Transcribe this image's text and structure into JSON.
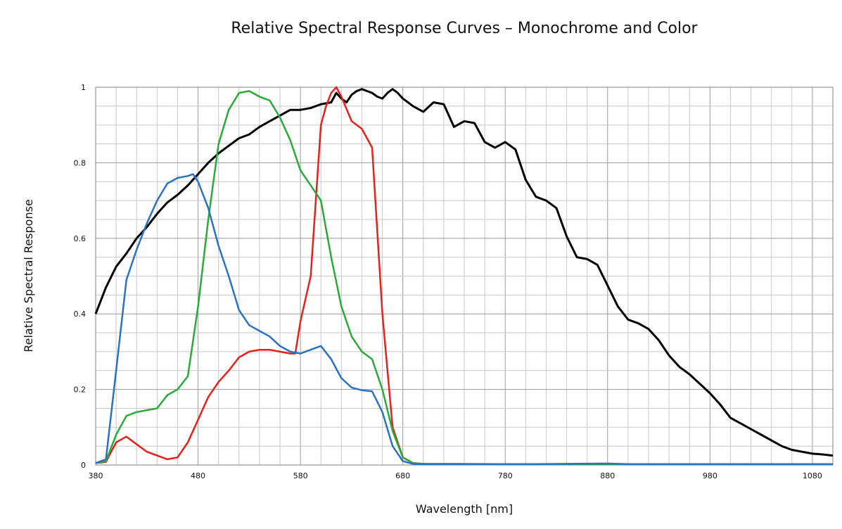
{
  "chart_data": {
    "type": "line",
    "title": "Relative Spectral Response Curves – Monochrome and Color",
    "xlabel": "Wavelength [nm]",
    "ylabel": "Relative Spectral Response",
    "xlim": [
      380,
      1100
    ],
    "ylim": [
      0,
      1
    ],
    "x_ticks": [
      "380",
      "480",
      "580",
      "680",
      "780",
      "880",
      "980",
      "1080"
    ],
    "x_tick_values": [
      380,
      480,
      580,
      680,
      780,
      880,
      980,
      1080
    ],
    "y_ticks": [
      "0",
      "0.2",
      "0.4",
      "0.6",
      "0.8",
      "1"
    ],
    "y_tick_values": [
      0,
      0.2,
      0.4,
      0.6,
      0.8,
      1
    ],
    "grid": true,
    "legend": "none",
    "series": [
      {
        "color": "#000000",
        "points": [
          [
            380,
            0.4
          ],
          [
            390,
            0.47
          ],
          [
            400,
            0.525
          ],
          [
            410,
            0.56
          ],
          [
            420,
            0.6
          ],
          [
            430,
            0.63
          ],
          [
            440,
            0.665
          ],
          [
            450,
            0.695
          ],
          [
            460,
            0.715
          ],
          [
            470,
            0.74
          ],
          [
            480,
            0.77
          ],
          [
            490,
            0.8
          ],
          [
            500,
            0.825
          ],
          [
            510,
            0.845
          ],
          [
            520,
            0.865
          ],
          [
            530,
            0.875
          ],
          [
            540,
            0.895
          ],
          [
            550,
            0.91
          ],
          [
            560,
            0.925
          ],
          [
            570,
            0.94
          ],
          [
            580,
            0.94
          ],
          [
            590,
            0.945
          ],
          [
            600,
            0.955
          ],
          [
            610,
            0.96
          ],
          [
            615,
            0.985
          ],
          [
            620,
            0.97
          ],
          [
            625,
            0.96
          ],
          [
            630,
            0.98
          ],
          [
            635,
            0.99
          ],
          [
            640,
            0.995
          ],
          [
            645,
            0.99
          ],
          [
            650,
            0.985
          ],
          [
            655,
            0.975
          ],
          [
            660,
            0.97
          ],
          [
            665,
            0.985
          ],
          [
            670,
            0.995
          ],
          [
            675,
            0.985
          ],
          [
            680,
            0.97
          ],
          [
            690,
            0.95
          ],
          [
            700,
            0.935
          ],
          [
            710,
            0.96
          ],
          [
            720,
            0.955
          ],
          [
            730,
            0.895
          ],
          [
            740,
            0.91
          ],
          [
            750,
            0.905
          ],
          [
            760,
            0.855
          ],
          [
            770,
            0.84
          ],
          [
            780,
            0.855
          ],
          [
            790,
            0.835
          ],
          [
            800,
            0.755
          ],
          [
            810,
            0.71
          ],
          [
            820,
            0.7
          ],
          [
            830,
            0.68
          ],
          [
            840,
            0.605
          ],
          [
            850,
            0.55
          ],
          [
            860,
            0.545
          ],
          [
            870,
            0.53
          ],
          [
            880,
            0.475
          ],
          [
            890,
            0.42
          ],
          [
            900,
            0.385
          ],
          [
            910,
            0.375
          ],
          [
            920,
            0.36
          ],
          [
            930,
            0.33
          ],
          [
            940,
            0.29
          ],
          [
            950,
            0.26
          ],
          [
            960,
            0.24
          ],
          [
            970,
            0.215
          ],
          [
            980,
            0.19
          ],
          [
            990,
            0.16
          ],
          [
            1000,
            0.125
          ],
          [
            1010,
            0.11
          ],
          [
            1020,
            0.095
          ],
          [
            1030,
            0.08
          ],
          [
            1040,
            0.065
          ],
          [
            1050,
            0.05
          ],
          [
            1060,
            0.04
          ],
          [
            1070,
            0.035
          ],
          [
            1080,
            0.03
          ],
          [
            1090,
            0.028
          ],
          [
            1100,
            0.025
          ]
        ]
      },
      {
        "color": "#e8201c",
        "points": [
          [
            380,
            0.005
          ],
          [
            390,
            0.008
          ],
          [
            400,
            0.06
          ],
          [
            410,
            0.075
          ],
          [
            420,
            0.055
          ],
          [
            430,
            0.035
          ],
          [
            440,
            0.025
          ],
          [
            450,
            0.015
          ],
          [
            460,
            0.02
          ],
          [
            470,
            0.06
          ],
          [
            480,
            0.12
          ],
          [
            490,
            0.18
          ],
          [
            500,
            0.22
          ],
          [
            510,
            0.25
          ],
          [
            520,
            0.285
          ],
          [
            530,
            0.3
          ],
          [
            540,
            0.305
          ],
          [
            550,
            0.305
          ],
          [
            560,
            0.3
          ],
          [
            570,
            0.295
          ],
          [
            575,
            0.295
          ],
          [
            580,
            0.38
          ],
          [
            590,
            0.5
          ],
          [
            600,
            0.9
          ],
          [
            605,
            0.95
          ],
          [
            610,
            0.985
          ],
          [
            615,
            1.0
          ],
          [
            620,
            0.975
          ],
          [
            630,
            0.91
          ],
          [
            640,
            0.89
          ],
          [
            650,
            0.84
          ],
          [
            660,
            0.4
          ],
          [
            670,
            0.1
          ],
          [
            680,
            0.02
          ],
          [
            690,
            0.005
          ],
          [
            700,
            0.003
          ],
          [
            800,
            0.002
          ],
          [
            1100,
            0.002
          ]
        ]
      },
      {
        "color": "#2aaa3a",
        "points": [
          [
            380,
            0.005
          ],
          [
            390,
            0.01
          ],
          [
            400,
            0.08
          ],
          [
            410,
            0.13
          ],
          [
            420,
            0.14
          ],
          [
            430,
            0.145
          ],
          [
            440,
            0.15
          ],
          [
            450,
            0.185
          ],
          [
            460,
            0.2
          ],
          [
            470,
            0.235
          ],
          [
            480,
            0.42
          ],
          [
            490,
            0.65
          ],
          [
            500,
            0.85
          ],
          [
            510,
            0.94
          ],
          [
            520,
            0.985
          ],
          [
            530,
            0.99
          ],
          [
            540,
            0.975
          ],
          [
            550,
            0.965
          ],
          [
            560,
            0.92
          ],
          [
            570,
            0.86
          ],
          [
            580,
            0.78
          ],
          [
            590,
            0.74
          ],
          [
            600,
            0.7
          ],
          [
            610,
            0.55
          ],
          [
            620,
            0.42
          ],
          [
            630,
            0.34
          ],
          [
            640,
            0.3
          ],
          [
            650,
            0.28
          ],
          [
            660,
            0.2
          ],
          [
            670,
            0.09
          ],
          [
            680,
            0.02
          ],
          [
            690,
            0.005
          ],
          [
            700,
            0.003
          ],
          [
            800,
            0.002
          ],
          [
            1100,
            0.002
          ]
        ]
      },
      {
        "color": "#2b72c2",
        "points": [
          [
            380,
            0.005
          ],
          [
            390,
            0.015
          ],
          [
            400,
            0.25
          ],
          [
            410,
            0.49
          ],
          [
            420,
            0.57
          ],
          [
            430,
            0.64
          ],
          [
            440,
            0.7
          ],
          [
            450,
            0.745
          ],
          [
            460,
            0.76
          ],
          [
            470,
            0.765
          ],
          [
            475,
            0.77
          ],
          [
            480,
            0.75
          ],
          [
            490,
            0.68
          ],
          [
            500,
            0.58
          ],
          [
            510,
            0.5
          ],
          [
            520,
            0.41
          ],
          [
            530,
            0.37
          ],
          [
            540,
            0.355
          ],
          [
            550,
            0.34
          ],
          [
            560,
            0.315
          ],
          [
            570,
            0.3
          ],
          [
            580,
            0.295
          ],
          [
            590,
            0.305
          ],
          [
            600,
            0.315
          ],
          [
            610,
            0.28
          ],
          [
            620,
            0.23
          ],
          [
            630,
            0.205
          ],
          [
            640,
            0.198
          ],
          [
            650,
            0.195
          ],
          [
            660,
            0.14
          ],
          [
            670,
            0.05
          ],
          [
            680,
            0.01
          ],
          [
            690,
            0.003
          ],
          [
            700,
            0.002
          ],
          [
            800,
            0.002
          ],
          [
            880,
            0.004
          ],
          [
            900,
            0.002
          ],
          [
            1100,
            0.002
          ]
        ]
      }
    ]
  }
}
